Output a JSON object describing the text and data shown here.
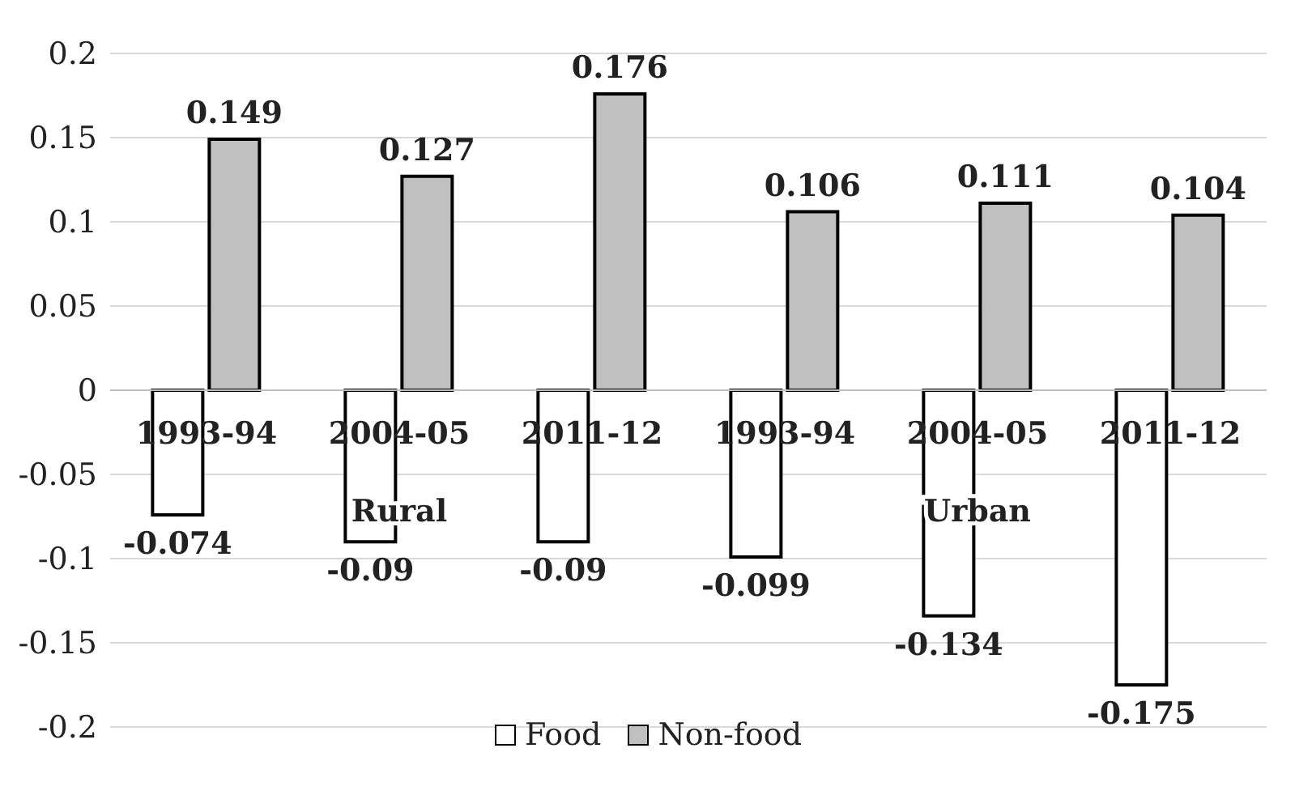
{
  "chart_data": {
    "type": "bar",
    "categories": [
      "1993-94",
      "2004-05",
      "2011-12",
      "1993-94",
      "2004-05",
      "2011-12"
    ],
    "series": [
      {
        "name": "Food",
        "color": "#ffffff",
        "values": [
          -0.074,
          -0.09,
          -0.09,
          -0.099,
          -0.134,
          -0.175
        ]
      },
      {
        "name": "Non-food",
        "color": "#c0c0c0",
        "values": [
          0.149,
          0.127,
          0.176,
          0.106,
          0.111,
          0.104
        ]
      }
    ],
    "ylim": [
      -0.2,
      0.2
    ],
    "yticks": [
      -0.2,
      -0.15,
      -0.1,
      -0.05,
      0,
      0.05,
      0.1,
      0.15,
      0.2
    ],
    "annotations": [
      "Rural",
      "Urban"
    ],
    "data_labels": true,
    "grid": "y",
    "legend": "bottom"
  }
}
